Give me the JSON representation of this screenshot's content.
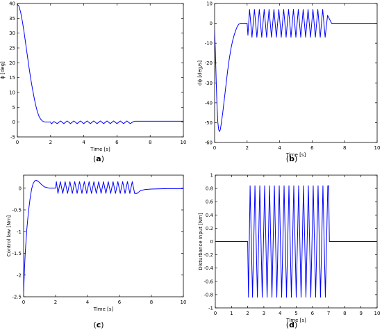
{
  "chart_data": [
    {
      "type": "line",
      "caption": "(a)",
      "xlabel": "Time [s]",
      "ylabel": "ϕ [deg]",
      "xlim": [
        0,
        10
      ],
      "ylim": [
        -5,
        40
      ],
      "xticks": [
        0,
        2,
        4,
        6,
        8,
        10
      ],
      "yticks": [
        -5,
        0,
        5,
        10,
        15,
        20,
        25,
        30,
        35,
        40
      ],
      "grid": false,
      "series": [
        {
          "color": "#0000ff",
          "x": [
            0,
            0.1,
            0.2,
            0.3,
            0.4,
            0.5,
            0.6,
            0.7,
            0.8,
            0.9,
            1.0,
            1.1,
            1.2,
            1.3,
            1.4,
            1.5,
            1.6,
            1.7,
            1.8,
            1.9,
            2.0,
            2.05,
            2.2,
            2.4,
            2.6,
            2.8,
            3.0,
            3.2,
            3.4,
            3.6,
            3.8,
            4.0,
            4.2,
            4.4,
            4.6,
            4.8,
            5.0,
            5.2,
            5.4,
            5.6,
            5.8,
            6.0,
            6.2,
            6.4,
            6.6,
            6.8,
            7.0,
            7.1,
            8.0,
            10.0
          ],
          "y": [
            39.8,
            39.0,
            37.0,
            34.0,
            30.5,
            26.5,
            22.5,
            18.5,
            14.8,
            11.5,
            8.5,
            5.8,
            3.6,
            2.0,
            1.0,
            0.4,
            0.1,
            0.0,
            0.0,
            0.0,
            0.0,
            -0.6,
            0.2,
            -0.5,
            0.4,
            -0.5,
            0.4,
            -0.5,
            0.4,
            -0.5,
            0.4,
            -0.5,
            0.4,
            -0.5,
            0.4,
            -0.5,
            0.4,
            -0.5,
            0.4,
            -0.5,
            0.4,
            -0.5,
            0.4,
            -0.5,
            0.4,
            -0.5,
            0.2,
            0.3,
            0.3,
            0.3
          ]
        }
      ]
    },
    {
      "type": "line",
      "caption": "(b)",
      "xlabel": "Time [s]",
      "ylabel": "dϕ [deg/s]",
      "xlim": [
        0,
        10
      ],
      "ylim": [
        -60,
        10
      ],
      "xticks": [
        0,
        2,
        4,
        6,
        8,
        10
      ],
      "yticks": [
        -60,
        -50,
        -40,
        -30,
        -20,
        -10,
        0,
        10
      ],
      "grid": false,
      "series": [
        {
          "color": "#0000ff",
          "x": [
            0,
            0.05,
            0.1,
            0.15,
            0.2,
            0.25,
            0.3,
            0.35,
            0.4,
            0.5,
            0.6,
            0.7,
            0.8,
            0.9,
            1.0,
            1.1,
            1.2,
            1.3,
            1.4,
            1.5,
            1.6,
            1.7,
            1.8,
            1.9,
            2.0,
            2.05,
            2.15,
            2.3,
            2.45,
            2.6,
            2.75,
            2.9,
            3.05,
            3.2,
            3.35,
            3.5,
            3.65,
            3.8,
            3.95,
            4.1,
            4.25,
            4.4,
            4.55,
            4.7,
            4.85,
            5.0,
            5.15,
            5.3,
            5.45,
            5.6,
            5.75,
            5.9,
            6.05,
            6.2,
            6.35,
            6.5,
            6.65,
            6.8,
            6.95,
            7.2,
            10.0
          ],
          "y": [
            -3,
            -15,
            -30,
            -42,
            -50,
            -53.5,
            -54.5,
            -53.5,
            -51,
            -45,
            -38,
            -31,
            -24,
            -18,
            -13,
            -9,
            -6,
            -3.5,
            -1.5,
            -0.3,
            0,
            0,
            0,
            0,
            0,
            -6,
            7,
            -7,
            7,
            -7,
            7,
            -7,
            7,
            -7,
            7,
            -7,
            7,
            -7,
            7,
            -7,
            7,
            -7,
            7,
            -7,
            7,
            -7,
            7,
            -7,
            7,
            -7,
            7,
            -7,
            7,
            -7,
            7,
            -7,
            7,
            -7,
            4,
            0,
            0
          ]
        }
      ]
    },
    {
      "type": "line",
      "caption": "(c)",
      "xlabel": "Time [s]",
      "ylabel": "Control law [Nm]",
      "xlim": [
        0,
        10
      ],
      "ylim": [
        -2.5,
        0.3
      ],
      "xticks": [
        0,
        2,
        4,
        6,
        8,
        10
      ],
      "yticks": [
        -2.5,
        -2,
        -1.5,
        -1,
        -0.5,
        0
      ],
      "grid": false,
      "series": [
        {
          "color": "#0000ff",
          "x": [
            0,
            0.05,
            0.1,
            0.2,
            0.3,
            0.4,
            0.5,
            0.6,
            0.7,
            0.8,
            0.9,
            1.0,
            1.1,
            1.2,
            1.3,
            1.4,
            1.5,
            1.6,
            1.7,
            1.8,
            1.9,
            2.0,
            2.05,
            2.15,
            2.3,
            2.45,
            2.6,
            2.75,
            2.9,
            3.05,
            3.2,
            3.35,
            3.5,
            3.65,
            3.8,
            3.95,
            4.1,
            4.25,
            4.4,
            4.55,
            4.7,
            4.85,
            5.0,
            5.15,
            5.3,
            5.45,
            5.6,
            5.75,
            5.9,
            6.05,
            6.2,
            6.35,
            6.5,
            6.65,
            6.8,
            6.95,
            7.1,
            7.3,
            7.6,
            8.0,
            9.0,
            10.0
          ],
          "y": [
            -2.4,
            -1.9,
            -1.5,
            -0.95,
            -0.55,
            -0.25,
            -0.02,
            0.11,
            0.17,
            0.18,
            0.16,
            0.13,
            0.09,
            0.06,
            0.03,
            0.02,
            0.01,
            0.0,
            0.0,
            0.0,
            0.0,
            0.0,
            0.15,
            -0.12,
            0.15,
            -0.12,
            0.15,
            -0.12,
            0.15,
            -0.12,
            0.15,
            -0.12,
            0.15,
            -0.12,
            0.15,
            -0.12,
            0.15,
            -0.12,
            0.15,
            -0.12,
            0.15,
            -0.12,
            0.15,
            -0.12,
            0.15,
            -0.12,
            0.15,
            -0.12,
            0.15,
            -0.12,
            0.15,
            -0.12,
            0.15,
            -0.12,
            0.15,
            -0.12,
            -0.12,
            -0.06,
            -0.03,
            -0.02,
            -0.01,
            -0.01
          ]
        }
      ]
    },
    {
      "type": "line",
      "caption": "(d)",
      "xlabel": "Time [s]",
      "ylabel": "Disturbance Input [Nm]",
      "xlim": [
        0,
        10
      ],
      "ylim": [
        -1,
        1
      ],
      "xticks": [
        0,
        1,
        2,
        3,
        4,
        5,
        6,
        7,
        8,
        9,
        10
      ],
      "yticks": [
        -1,
        -0.8,
        -0.6,
        -0.4,
        -0.2,
        0,
        0.2,
        0.4,
        0.6,
        0.8,
        1
      ],
      "grid": false,
      "series": [
        {
          "color": "#0000ff",
          "x": [
            0,
            2.0,
            2.05,
            2.15,
            2.3,
            2.45,
            2.6,
            2.75,
            2.9,
            3.05,
            3.2,
            3.35,
            3.5,
            3.65,
            3.8,
            3.95,
            4.1,
            4.25,
            4.4,
            4.55,
            4.7,
            4.85,
            5.0,
            5.15,
            5.3,
            5.45,
            5.6,
            5.75,
            5.9,
            6.05,
            6.2,
            6.35,
            6.5,
            6.65,
            6.8,
            6.95,
            7.0,
            7.05,
            10.0
          ],
          "y": [
            0,
            0,
            -0.84,
            0.84,
            -0.84,
            0.84,
            -0.84,
            0.84,
            -0.84,
            0.84,
            -0.84,
            0.84,
            -0.84,
            0.84,
            -0.84,
            0.84,
            -0.84,
            0.84,
            -0.84,
            0.84,
            -0.84,
            0.84,
            -0.84,
            0.84,
            -0.84,
            0.84,
            -0.84,
            0.84,
            -0.84,
            0.84,
            -0.84,
            0.84,
            -0.84,
            0.84,
            -0.84,
            0.84,
            0.84,
            0,
            0
          ]
        }
      ]
    }
  ]
}
